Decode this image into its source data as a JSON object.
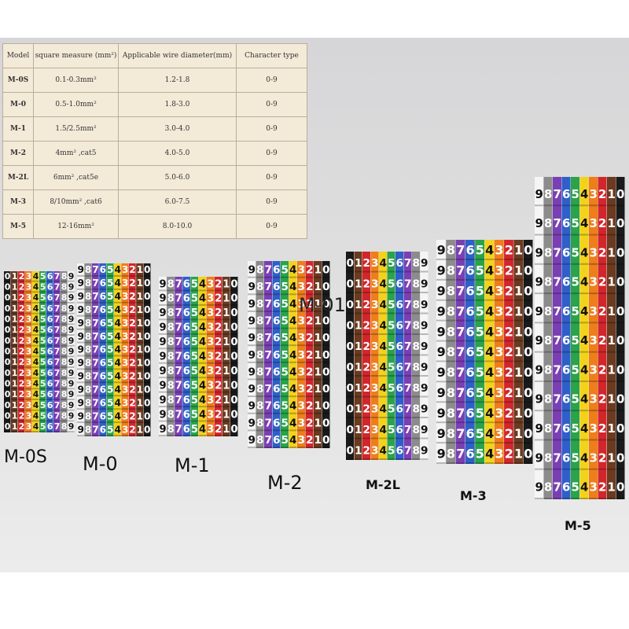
{
  "table": {
    "header": [
      "Model",
      "square measure (mm²)",
      "Applicable wire diameter(mm)",
      "Character type"
    ],
    "rows": [
      [
        "M-0S",
        "0.1-0.3mm²",
        "1.2-1.8",
        "0-9"
      ],
      [
        "M-0",
        "0.5-1.0mm²",
        "1.8-3.0",
        "0-9"
      ],
      [
        "M-1",
        "1.5/2.5mm²",
        "3.0-4.0",
        "0-9"
      ],
      [
        "M-2",
        "4mm² ,cat5",
        "4.0-5.0",
        "0-9"
      ],
      [
        "M-2L",
        "6mm² ,cat5e",
        "5.0-6.0",
        "0-9"
      ],
      [
        "M-3",
        "8/10mm² ,cat6",
        "6.0-7.5",
        "0-9"
      ],
      [
        "M-5",
        "12-16mm²",
        "8.0-10.0",
        "0-9"
      ]
    ]
  },
  "markers": [
    {
      "label": "M-0S",
      "digits": [
        "0",
        "1",
        "2",
        "3",
        "4",
        "5",
        "6",
        "7",
        "8",
        "9"
      ]
    },
    {
      "label": "M-0",
      "digits": [
        "9",
        "8",
        "7",
        "6",
        "5",
        "4",
        "3",
        "2",
        "1",
        "0"
      ]
    },
    {
      "label": "M-1",
      "digits": [
        "9",
        "8",
        "7",
        "6",
        "5",
        "4",
        "3",
        "2",
        "1",
        "0"
      ]
    },
    {
      "label": "M-2",
      "digits": [
        "9",
        "8",
        "7",
        "6",
        "5",
        "4",
        "3",
        "2",
        "1",
        "0"
      ]
    },
    {
      "label": "M-2L",
      "digits": [
        "0",
        "1",
        "2",
        "3",
        "4",
        "5",
        "6",
        "7",
        "8",
        "9"
      ]
    },
    {
      "label": "M-3",
      "digits": [
        "9",
        "8",
        "7",
        "6",
        "5",
        "4",
        "3",
        "2",
        "1",
        "0"
      ]
    },
    {
      "label": "M-5",
      "digits": [
        "9",
        "8",
        "7",
        "6",
        "5",
        "4",
        "3",
        "2",
        "1",
        "0"
      ]
    }
  ],
  "overlay_text": "M-01"
}
